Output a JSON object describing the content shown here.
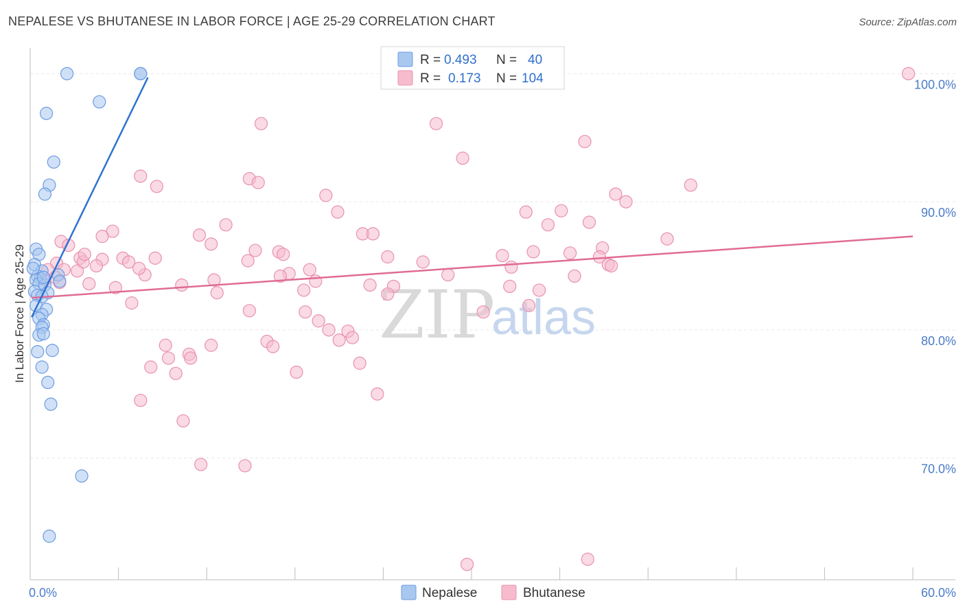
{
  "header": {
    "title": "NEPALESE VS BHUTANESE IN LABOR FORCE | AGE 25-29 CORRELATION CHART",
    "source": "Source: ZipAtlas.com"
  },
  "watermark": {
    "zip": "ZIP",
    "atlas": "atlas"
  },
  "colors": {
    "nepalese_fill": "#a9c8f0",
    "nepalese_stroke": "#6d9be0",
    "nepalese_line": "#2f72d0",
    "bhutanese_fill": "#f6bccd",
    "bhutanese_stroke": "#e891ad",
    "bhutanese_line": "#e06b95",
    "axis_text": "#4a7cc9",
    "grid": "#e6e6e6"
  },
  "legend_stats": {
    "rows": [
      {
        "r_label": "R =",
        "r_value": "0.493",
        "n_label": "N =",
        "n_value": "40"
      },
      {
        "r_label": "R =",
        "r_value": "0.173",
        "n_label": "N =",
        "n_value": "104"
      }
    ]
  },
  "chart_data": {
    "type": "scatter",
    "title": "NEPALESE VS BHUTANESE IN LABOR FORCE | AGE 25-29 CORRELATION CHART",
    "xlabel": "",
    "ylabel": "In Labor Force | Age 25-29",
    "xlim": [
      0,
      60
    ],
    "ylim": [
      60.5,
      102
    ],
    "x_tick_labels": [
      "0.0%",
      "60.0%"
    ],
    "y_ticks": [
      70,
      80,
      90,
      100
    ],
    "y_tick_labels": [
      "70.0%",
      "80.0%",
      "90.0%",
      "100.0%"
    ],
    "legend": [
      "Nepalese",
      "Bhutanese"
    ],
    "legend_position": "bottom-center",
    "series": [
      {
        "name": "Nepalese",
        "r": 0.493,
        "n": 40,
        "trend": {
          "x": [
            0.1,
            8.0
          ],
          "y": [
            81.0,
            99.7
          ]
        },
        "points": [
          [
            2.5,
            100
          ],
          [
            7.5,
            100
          ],
          [
            7.5,
            100
          ],
          [
            4.7,
            97.8
          ],
          [
            1.1,
            96.9
          ],
          [
            1.6,
            93.1
          ],
          [
            1.3,
            91.3
          ],
          [
            1.0,
            90.6
          ],
          [
            0.4,
            86.3
          ],
          [
            0.6,
            85.9
          ],
          [
            0.3,
            85.1
          ],
          [
            0.8,
            84.6
          ],
          [
            1.9,
            84.3
          ],
          [
            0.5,
            84.2
          ],
          [
            0.7,
            84.0
          ],
          [
            0.4,
            83.9
          ],
          [
            0.6,
            83.6
          ],
          [
            2.0,
            83.8
          ],
          [
            1.0,
            83.5
          ],
          [
            0.3,
            83.0
          ],
          [
            0.5,
            82.7
          ],
          [
            1.2,
            82.9
          ],
          [
            0.8,
            82.6
          ],
          [
            0.4,
            81.9
          ],
          [
            1.1,
            81.6
          ],
          [
            0.8,
            81.2
          ],
          [
            0.6,
            80.9
          ],
          [
            0.9,
            80.4
          ],
          [
            0.8,
            80.2
          ],
          [
            0.6,
            79.6
          ],
          [
            0.9,
            79.7
          ],
          [
            0.5,
            78.3
          ],
          [
            1.5,
            78.4
          ],
          [
            0.8,
            77.1
          ],
          [
            1.2,
            75.9
          ],
          [
            1.4,
            74.2
          ],
          [
            3.5,
            68.6
          ],
          [
            1.3,
            63.9
          ],
          [
            0.2,
            84.8
          ],
          [
            0.9,
            84.1
          ]
        ]
      },
      {
        "name": "Bhutanese",
        "r": 0.173,
        "n": 104,
        "trend": {
          "x": [
            0.1,
            60.0
          ],
          "y": [
            82.5,
            87.3
          ]
        },
        "points": [
          [
            59.7,
            100
          ],
          [
            15.7,
            96.1
          ],
          [
            27.6,
            96.1
          ],
          [
            37.7,
            94.7
          ],
          [
            29.4,
            93.4
          ],
          [
            7.5,
            92.0
          ],
          [
            14.9,
            91.8
          ],
          [
            8.6,
            91.2
          ],
          [
            15.5,
            91.5
          ],
          [
            44.9,
            91.3
          ],
          [
            39.8,
            90.6
          ],
          [
            20.1,
            90.5
          ],
          [
            40.5,
            90.0
          ],
          [
            33.7,
            89.2
          ],
          [
            36.1,
            89.3
          ],
          [
            20.9,
            89.2
          ],
          [
            35.2,
            88.2
          ],
          [
            38.0,
            88.4
          ],
          [
            13.3,
            88.2
          ],
          [
            5.6,
            87.7
          ],
          [
            4.9,
            87.3
          ],
          [
            11.5,
            87.4
          ],
          [
            22.6,
            87.5
          ],
          [
            23.3,
            87.5
          ],
          [
            12.3,
            86.7
          ],
          [
            43.3,
            87.1
          ],
          [
            2.1,
            86.9
          ],
          [
            2.6,
            86.6
          ],
          [
            15.3,
            86.2
          ],
          [
            16.9,
            86.1
          ],
          [
            38.9,
            86.4
          ],
          [
            34.2,
            86.1
          ],
          [
            36.7,
            86.0
          ],
          [
            32.1,
            85.8
          ],
          [
            3.4,
            85.6
          ],
          [
            6.3,
            85.6
          ],
          [
            8.5,
            85.6
          ],
          [
            4.9,
            85.5
          ],
          [
            3.6,
            85.3
          ],
          [
            24.3,
            85.7
          ],
          [
            26.7,
            85.3
          ],
          [
            38.7,
            85.7
          ],
          [
            14.8,
            85.4
          ],
          [
            6.7,
            85.3
          ],
          [
            17.2,
            85.9
          ],
          [
            1.8,
            85.2
          ],
          [
            4.5,
            85.0
          ],
          [
            39.3,
            85.1
          ],
          [
            39.5,
            85.0
          ],
          [
            1.2,
            84.7
          ],
          [
            2.3,
            84.7
          ],
          [
            3.2,
            84.6
          ],
          [
            19.0,
            84.7
          ],
          [
            17.6,
            84.4
          ],
          [
            32.7,
            84.9
          ],
          [
            7.8,
            84.3
          ],
          [
            17.0,
            84.2
          ],
          [
            28.4,
            84.3
          ],
          [
            37.0,
            84.2
          ],
          [
            1.0,
            83.9
          ],
          [
            12.5,
            83.9
          ],
          [
            1.7,
            84.1
          ],
          [
            2.0,
            83.7
          ],
          [
            19.4,
            83.8
          ],
          [
            4.0,
            83.6
          ],
          [
            10.3,
            83.5
          ],
          [
            24.7,
            83.4
          ],
          [
            23.1,
            83.5
          ],
          [
            32.6,
            83.4
          ],
          [
            5.8,
            83.3
          ],
          [
            18.6,
            83.1
          ],
          [
            34.6,
            83.1
          ],
          [
            12.7,
            82.9
          ],
          [
            24.3,
            82.8
          ],
          [
            6.9,
            82.1
          ],
          [
            33.9,
            81.9
          ],
          [
            14.9,
            81.5
          ],
          [
            18.7,
            81.4
          ],
          [
            30.8,
            81.4
          ],
          [
            19.6,
            80.7
          ],
          [
            20.3,
            80.0
          ],
          [
            21.6,
            79.9
          ],
          [
            21.9,
            79.4
          ],
          [
            21.0,
            79.2
          ],
          [
            16.1,
            79.1
          ],
          [
            9.2,
            78.8
          ],
          [
            12.3,
            78.8
          ],
          [
            16.5,
            78.7
          ],
          [
            10.8,
            78.1
          ],
          [
            10.9,
            77.8
          ],
          [
            9.4,
            77.8
          ],
          [
            22.4,
            77.4
          ],
          [
            8.2,
            77.1
          ],
          [
            18.1,
            76.7
          ],
          [
            9.9,
            76.6
          ],
          [
            23.6,
            75.0
          ],
          [
            7.5,
            74.5
          ],
          [
            10.4,
            72.9
          ],
          [
            11.6,
            69.5
          ],
          [
            14.6,
            69.4
          ],
          [
            29.7,
            61.7
          ],
          [
            37.9,
            62.1
          ],
          [
            3.7,
            85.9
          ],
          [
            7.4,
            84.8
          ]
        ]
      }
    ]
  }
}
